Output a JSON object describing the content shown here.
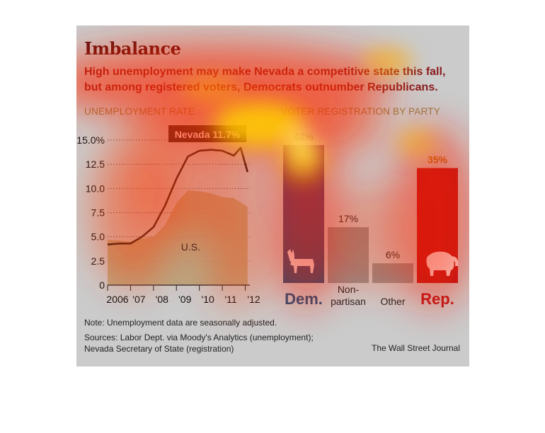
{
  "title": "Imbalance",
  "subtitle_line1": "High unemployment may make Nevada a competitive state this fall,",
  "subtitle_line2": "but among registered voters, Democrats outnumber Republicans.",
  "note": "Note: Unemployment data are seasonally adjusted.",
  "sources_line1": "Sources: Labor Dept. via Moody's Analytics (unemployment);",
  "sources_line2": "Nevada Secretary of State (registration)",
  "credit": "The Wall Street Journal",
  "colors": {
    "nevada_line": "#1a1a1a",
    "us_area": "#b8a27a",
    "dem": "#1f4e79",
    "other": "#8f8f8f",
    "rep": "#b4161b"
  },
  "chart_data": [
    {
      "type": "area",
      "title": "UNEMPLOYMENT RATE",
      "ylim": [
        0,
        15
      ],
      "y_ticks": [
        "15.0%",
        "12.5",
        "10.0",
        "7.5",
        "5.0",
        "2.5",
        "0"
      ],
      "x_ticks": [
        "2006",
        "'07",
        "'08",
        "'09",
        "'10",
        "'11",
        "'12"
      ],
      "series": [
        {
          "name": "Nevada 11.7%",
          "kind": "line",
          "x": [
            2006,
            2006.5,
            2007,
            2007.5,
            2008,
            2008.5,
            2009,
            2009.5,
            2010,
            2010.5,
            2011,
            2011.5,
            2011.8,
            2012.1
          ],
          "y": [
            4.2,
            4.3,
            4.3,
            5.0,
            6.0,
            8.2,
            11.0,
            13.3,
            13.9,
            14.0,
            13.9,
            13.4,
            14.2,
            11.7
          ]
        },
        {
          "name": "U.S.",
          "kind": "area",
          "x": [
            2006,
            2006.5,
            2007,
            2007.5,
            2008,
            2008.5,
            2009,
            2009.5,
            2010,
            2010.5,
            2011,
            2011.5,
            2012.1
          ],
          "y": [
            4.7,
            4.6,
            4.5,
            4.8,
            5.0,
            6.2,
            8.5,
            9.8,
            9.7,
            9.5,
            9.1,
            9.0,
            8.1
          ]
        }
      ]
    },
    {
      "type": "bar",
      "title": "VOTER REGISTRATION BY PARTY",
      "categories": [
        "Dem.",
        "Non-partisan",
        "Other",
        "Rep."
      ],
      "values": [
        42,
        17,
        6,
        35
      ],
      "labels": [
        "42%",
        "17%",
        "6%",
        "35%"
      ],
      "icons": [
        "donkey-icon",
        null,
        null,
        "elephant-icon"
      ]
    }
  ]
}
